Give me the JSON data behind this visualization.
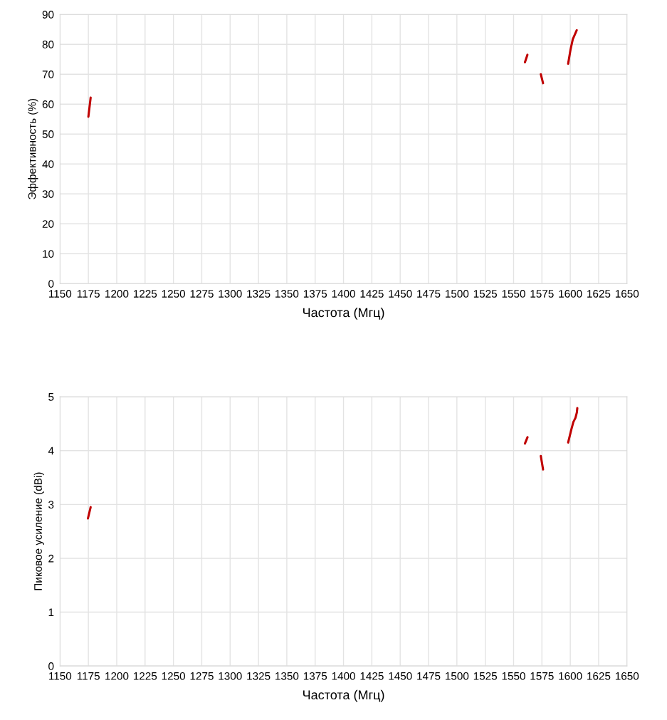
{
  "chart_data": [
    {
      "type": "line",
      "xlabel": "Частота (Мгц)",
      "ylabel": "Эффективность (%)",
      "xlim": [
        1150,
        1650
      ],
      "xticks": [
        1150,
        1175,
        1200,
        1225,
        1250,
        1275,
        1300,
        1325,
        1350,
        1375,
        1400,
        1425,
        1450,
        1475,
        1500,
        1525,
        1550,
        1575,
        1600,
        1625,
        1650
      ],
      "ylim": [
        0,
        90
      ],
      "yticks": [
        0,
        10,
        20,
        30,
        40,
        50,
        60,
        70,
        80,
        90
      ],
      "grid": true,
      "line_style": "solid",
      "marker": "none",
      "series": [
        {
          "color": "#c00000",
          "x": [
            1175,
            1177
          ],
          "values": [
            55.8,
            62.2
          ]
        },
        {
          "color": "#c00000",
          "x": [
            1560,
            1562.2
          ],
          "values": [
            74.0,
            76.5
          ]
        },
        {
          "color": "#c00000",
          "x": [
            1574,
            1576
          ],
          "values": [
            70.0,
            67.0
          ]
        },
        {
          "color": "#c00000",
          "x": [
            1598.1,
            1600.2,
            1602.2,
            1605.7
          ],
          "values": [
            73.5,
            78.2,
            81.7,
            84.7
          ]
        }
      ]
    },
    {
      "type": "line",
      "xlabel": "Частота (Мгц)",
      "ylabel": "Пиковое усиление (dBi)",
      "xlim": [
        1150,
        1650
      ],
      "xticks": [
        1150,
        1175,
        1200,
        1225,
        1250,
        1275,
        1300,
        1325,
        1350,
        1375,
        1400,
        1425,
        1450,
        1475,
        1500,
        1525,
        1550,
        1575,
        1600,
        1625,
        1650
      ],
      "ylim": [
        0,
        5
      ],
      "yticks": [
        0,
        1,
        2,
        3,
        4,
        5
      ],
      "grid": true,
      "line_style": "solid",
      "marker": "none",
      "series": [
        {
          "color": "#c00000",
          "x": [
            1174.6,
            1177
          ],
          "values": [
            2.74,
            2.95
          ]
        },
        {
          "color": "#c00000",
          "x": [
            1560,
            1562.3
          ],
          "values": [
            4.13,
            4.25
          ]
        },
        {
          "color": "#c00000",
          "x": [
            1574,
            1576
          ],
          "values": [
            3.9,
            3.65
          ]
        },
        {
          "color": "#c00000",
          "x": [
            1598.1,
            1600.8,
            1602.7,
            1604.6,
            1605.8,
            1606.2
          ],
          "values": [
            4.15,
            4.38,
            4.53,
            4.61,
            4.71,
            4.79
          ]
        }
      ]
    }
  ]
}
